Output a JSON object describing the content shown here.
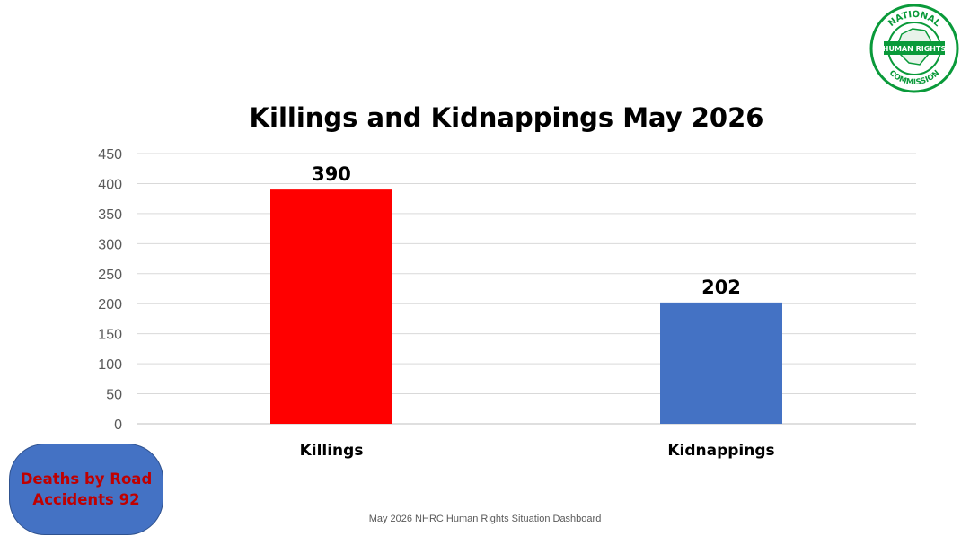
{
  "chart_data": {
    "type": "bar",
    "title": "Killings and Kidnappings May 2026",
    "categories": [
      "Killings",
      "Kidnappings"
    ],
    "values": [
      390,
      202
    ],
    "colors": [
      "#ff0000",
      "#4472c4"
    ],
    "ylim": [
      0,
      450
    ],
    "yticks": [
      "0",
      "50",
      "100",
      "150",
      "200",
      "250",
      "300",
      "350",
      "400",
      "450"
    ],
    "xlabel": "",
    "ylabel": "",
    "grid": true,
    "legend": "none"
  },
  "callout": {
    "text": "Deaths by Road Accidents 92",
    "color": "#4472c4",
    "text_color": "#c00000"
  },
  "footer": {
    "text": "May 2026 NHRC Human Rights Situation Dashboard"
  },
  "logo": {
    "top_text": "NATIONAL",
    "banner_text": "HUMAN RIGHTS",
    "bottom_text": "COMMISSION",
    "color": "#0a9a3a"
  }
}
